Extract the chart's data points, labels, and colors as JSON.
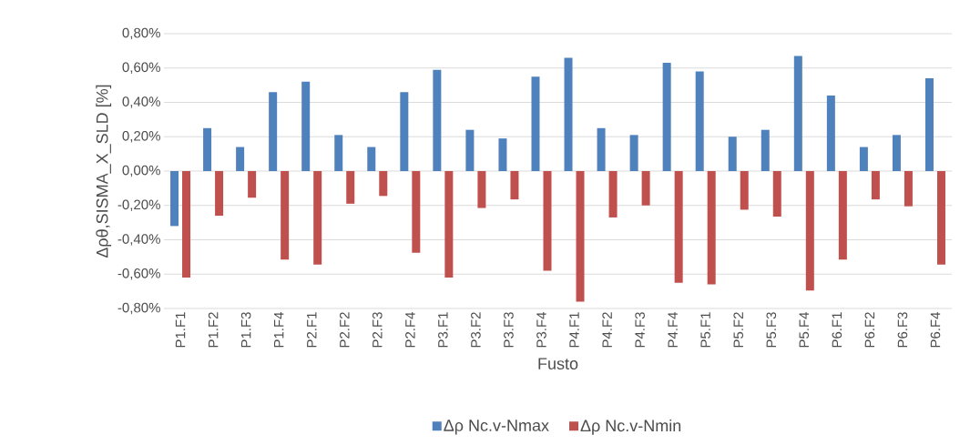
{
  "chart_data": {
    "type": "bar",
    "xlabel": "Fusto",
    "ylabel": "Δρθ,SISMA_X_SLD [%]",
    "categories": [
      "P1.F1",
      "P1.F2",
      "P1.F3",
      "P1.F4",
      "P2.F1",
      "P2.F2",
      "P2.F3",
      "P2.F4",
      "P3.F1",
      "P3.F2",
      "P3.F3",
      "P3.F4",
      "P4.F1",
      "P4.F2",
      "P4.F3",
      "P4.F4",
      "P5.F1",
      "P5.F2",
      "P5.F3",
      "P5.F4",
      "P6.F1",
      "P6.F2",
      "P6.F3",
      "P6.F4"
    ],
    "series": [
      {
        "name": "Δρ Nc.v-Nmax",
        "color": "#4f81bd",
        "values": [
          -0.32,
          0.25,
          0.14,
          0.46,
          0.52,
          0.21,
          0.14,
          0.46,
          0.59,
          0.24,
          0.19,
          0.55,
          0.66,
          0.25,
          0.21,
          0.63,
          0.58,
          0.2,
          0.24,
          0.67,
          0.44,
          0.14,
          0.21,
          0.54
        ]
      },
      {
        "name": "Δρ Nc.v-Nmin",
        "color": "#c0504d",
        "values": [
          -0.62,
          -0.26,
          -0.155,
          -0.515,
          -0.545,
          -0.19,
          -0.145,
          -0.475,
          -0.62,
          -0.215,
          -0.165,
          -0.58,
          -0.76,
          -0.27,
          -0.2,
          -0.65,
          -0.66,
          -0.225,
          -0.265,
          -0.695,
          -0.515,
          -0.165,
          -0.205,
          -0.545
        ]
      }
    ],
    "ylim": [
      -0.8,
      0.8
    ],
    "yticks": [
      {
        "value": -0.8,
        "label": "-0,80%"
      },
      {
        "value": -0.6,
        "label": "-0,60%"
      },
      {
        "value": -0.4,
        "label": "-0,40%"
      },
      {
        "value": -0.2,
        "label": "-0,20%"
      },
      {
        "value": 0,
        "label": "0,00%"
      },
      {
        "value": 0.2,
        "label": "0,20%"
      },
      {
        "value": 0.4,
        "label": "0,40%"
      },
      {
        "value": 0.6,
        "label": "0,60%"
      },
      {
        "value": 0.8,
        "label": "0,80%"
      }
    ],
    "grid": "y",
    "legend": "bottom"
  }
}
